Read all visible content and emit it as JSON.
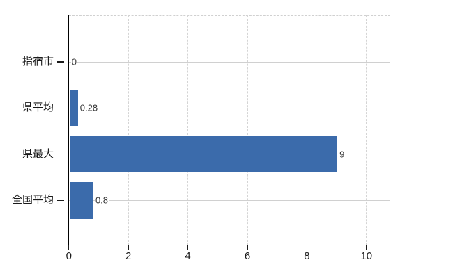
{
  "chart_data": {
    "type": "bar",
    "orientation": "horizontal",
    "categories": [
      "指宿市",
      "県平均",
      "県最大",
      "全国平均"
    ],
    "values": [
      0,
      0.28,
      9,
      0.8
    ],
    "value_labels": [
      "0",
      "0.28",
      "9",
      "0.8"
    ],
    "x_tick_values": [
      0,
      2,
      4,
      6,
      8,
      10
    ],
    "x_tick_labels": [
      "0",
      "2",
      "4",
      "6",
      "8",
      "10"
    ],
    "xlim": [
      0,
      10.8
    ],
    "grid": true,
    "legend_position": "none",
    "colors": {
      "bar": "#3b6bab",
      "grid": "#d0d0d0",
      "axis": "#000000",
      "tick_text": "#1a1a1a",
      "value_text": "#333333",
      "background": "#ffffff"
    }
  }
}
